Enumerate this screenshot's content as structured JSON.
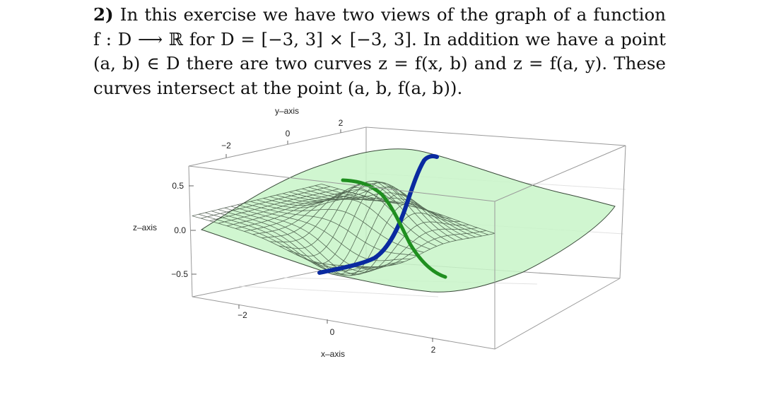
{
  "exercise": {
    "number": "2)",
    "lines": [
      " In this exercise we have two views of the graph of a function",
      "f : D ⟶ ℝ for D = [−3, 3] × [−3, 3]. In addition we have a point",
      "(a, b) ∈ D there are two curves z = f(x, b) and z = f(a, y). These",
      "curves intersect at the point (a, b, f(a, b))."
    ]
  },
  "chart_data": {
    "type": "surface3d",
    "title": "",
    "xlabel": "x–axis",
    "ylabel": "y–axis",
    "zlabel": "z–axis",
    "x_ticks": [
      "−2",
      "0",
      "2"
    ],
    "y_ticks": [
      "−2",
      "0",
      "2"
    ],
    "z_ticks": [
      "0.5",
      "0.0",
      "−0.5"
    ],
    "xlim": [
      -3,
      3
    ],
    "ylim": [
      -3,
      3
    ],
    "zlim": [
      -0.75,
      0.75
    ],
    "surface_color": "#c8f5c8",
    "mesh_color": "#2e3d2e",
    "curves": [
      {
        "name": "z = f(x, b)",
        "color": "#0a2aa0"
      },
      {
        "name": "z = f(a, y)",
        "color": "#1f8f1f"
      }
    ]
  }
}
